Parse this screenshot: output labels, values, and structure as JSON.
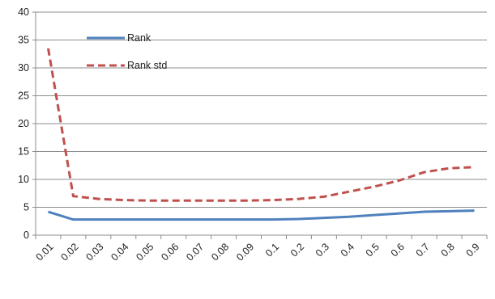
{
  "chart_data": {
    "type": "line",
    "title": "",
    "xlabel": "",
    "ylabel": "",
    "categories": [
      "0.01",
      "0.02",
      "0.03",
      "0.04",
      "0.05",
      "0.06",
      "0.07",
      "0.08",
      "0.09",
      "0.1",
      "0.2",
      "0.3",
      "0.4",
      "0.5",
      "0.6",
      "0.7",
      "0.8",
      "0.9"
    ],
    "ylim": [
      0,
      40
    ],
    "yticks": [
      0,
      5,
      10,
      15,
      20,
      25,
      30,
      35,
      40
    ],
    "grid": "horizontal",
    "legend_position": "top-left",
    "series": [
      {
        "name": "Rank",
        "color": "#4F81BD",
        "style": "solid",
        "values": [
          4.2,
          2.8,
          2.8,
          2.8,
          2.8,
          2.8,
          2.8,
          2.8,
          2.8,
          2.8,
          2.9,
          3.1,
          3.3,
          3.6,
          3.9,
          4.2,
          4.3,
          4.4
        ]
      },
      {
        "name": "Rank std",
        "color": "#C0504D",
        "style": "dashed",
        "values": [
          33.5,
          7.0,
          6.5,
          6.3,
          6.2,
          6.2,
          6.2,
          6.2,
          6.2,
          6.3,
          6.5,
          6.9,
          7.8,
          8.7,
          9.8,
          11.3,
          12.0,
          12.2
        ]
      }
    ]
  }
}
